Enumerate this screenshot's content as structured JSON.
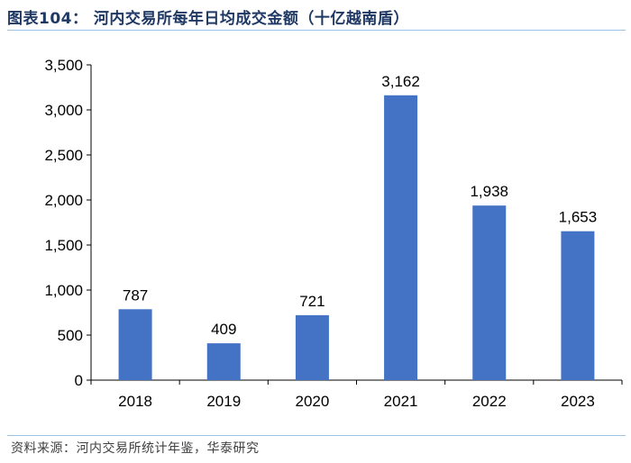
{
  "figure": {
    "title": "图表104：  河内交易所每年日均成交金额（十亿越南盾）",
    "source": "资料来源：河内交易所统计年鉴，华泰研究"
  },
  "colors": {
    "bar": "#4472c4",
    "rule": "#9dc3e6",
    "title": "#1f3864"
  },
  "chart_data": {
    "type": "bar",
    "title": "河内交易所每年日均成交金额（十亿越南盾）",
    "categories": [
      "2018",
      "2019",
      "2020",
      "2021",
      "2022",
      "2023"
    ],
    "values": [
      787,
      409,
      721,
      3162,
      1938,
      1653
    ],
    "data_labels": [
      "787",
      "409",
      "721",
      "3,162",
      "1,938",
      "1,653"
    ],
    "ylim": [
      0,
      3500
    ],
    "yticks": [
      0,
      500,
      1000,
      1500,
      2000,
      2500,
      3000,
      3500
    ],
    "ytick_labels": [
      "0",
      "500",
      "1,000",
      "1,500",
      "2,000",
      "2,500",
      "3,000",
      "3,500"
    ],
    "xlabel": "",
    "ylabel": "",
    "grid": false,
    "legend": "none"
  }
}
